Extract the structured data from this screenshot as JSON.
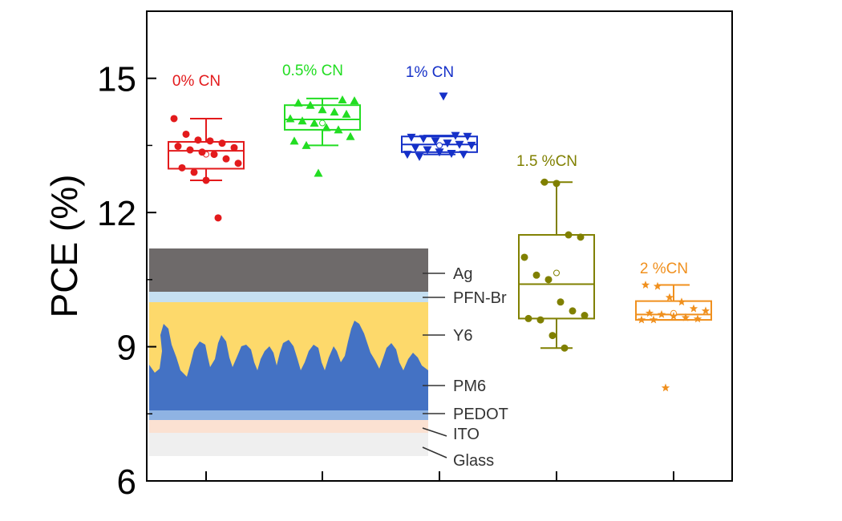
{
  "chart_data": {
    "type": "box",
    "ylabel": "PCE (%)",
    "ylim": [
      6,
      16.5
    ],
    "yticks": [
      6,
      9,
      12,
      15
    ],
    "categories": [
      "0% CN",
      "0.5% CN",
      "1% CN",
      "1.5 %CN",
      "2 %CN"
    ],
    "colors": [
      "#e31a1c",
      "#22dd22",
      "#1530c8",
      "#808000",
      "#f0901e"
    ],
    "markers": [
      "circle",
      "triangle-up",
      "triangle-down",
      "circle",
      "star"
    ],
    "series": [
      {
        "label": "0% CN",
        "box": {
          "whisker_low": 12.72,
          "q1": 12.98,
          "median": 13.38,
          "q3": 13.58,
          "whisker_high": 14.1,
          "mean": 13.3
        },
        "points": [
          14.1,
          13.75,
          13.62,
          13.6,
          13.55,
          13.45,
          13.48,
          13.4,
          13.35,
          13.3,
          13.2,
          13.1,
          13.0,
          12.9,
          12.72,
          11.88
        ]
      },
      {
        "label": "0.5% CN",
        "box": {
          "whisker_low": 13.5,
          "q1": 13.85,
          "median": 14.08,
          "q3": 14.4,
          "whisker_high": 14.55,
          "mean": 14.0
        },
        "points": [
          14.52,
          14.5,
          14.45,
          14.4,
          14.3,
          14.25,
          14.2,
          14.1,
          14.05,
          14.0,
          13.9,
          13.85,
          13.7,
          13.6,
          13.5,
          12.88
        ]
      },
      {
        "label": "1% CN",
        "box": {
          "whisker_low": 13.3,
          "q1": 13.35,
          "median": 13.52,
          "q3": 13.7,
          "whisker_high": 13.72,
          "mean": 13.5
        },
        "points": [
          14.6,
          13.72,
          13.7,
          13.68,
          13.65,
          13.6,
          13.55,
          13.52,
          13.5,
          13.45,
          13.4,
          13.35,
          13.32,
          13.3,
          13.3,
          13.25
        ]
      },
      {
        "label": "1.5 %CN",
        "box": {
          "whisker_low": 8.97,
          "q1": 9.63,
          "median": 10.4,
          "q3": 11.5,
          "whisker_high": 12.68,
          "mean": 10.65
        },
        "points": [
          12.68,
          12.65,
          11.5,
          11.45,
          11.0,
          10.6,
          10.5,
          10.0,
          9.8,
          9.7,
          9.63,
          9.6,
          9.25,
          8.97
        ]
      },
      {
        "label": "2 %CN",
        "box": {
          "whisker_low": 9.6,
          "q1": 9.6,
          "median": 9.72,
          "q3": 10.02,
          "whisker_high": 10.38,
          "mean": 9.75
        },
        "points": [
          10.38,
          10.35,
          10.1,
          10.0,
          9.85,
          9.8,
          9.75,
          9.72,
          9.68,
          9.65,
          9.62,
          9.6,
          9.6,
          8.08
        ]
      }
    ],
    "inset_layers": [
      {
        "label": "Ag",
        "color": "#6e6a6a"
      },
      {
        "label": "PFN-Br",
        "color": "#c5dff1"
      },
      {
        "label": "Y6",
        "color": "#fdd96b"
      },
      {
        "label": "PM6",
        "color": "#4472c4"
      },
      {
        "label": "PEDOT",
        "color": "#8fb3e3"
      },
      {
        "label": "ITO",
        "color": "#fbe1d2"
      },
      {
        "label": "Glass",
        "color": "#efefef"
      }
    ]
  }
}
